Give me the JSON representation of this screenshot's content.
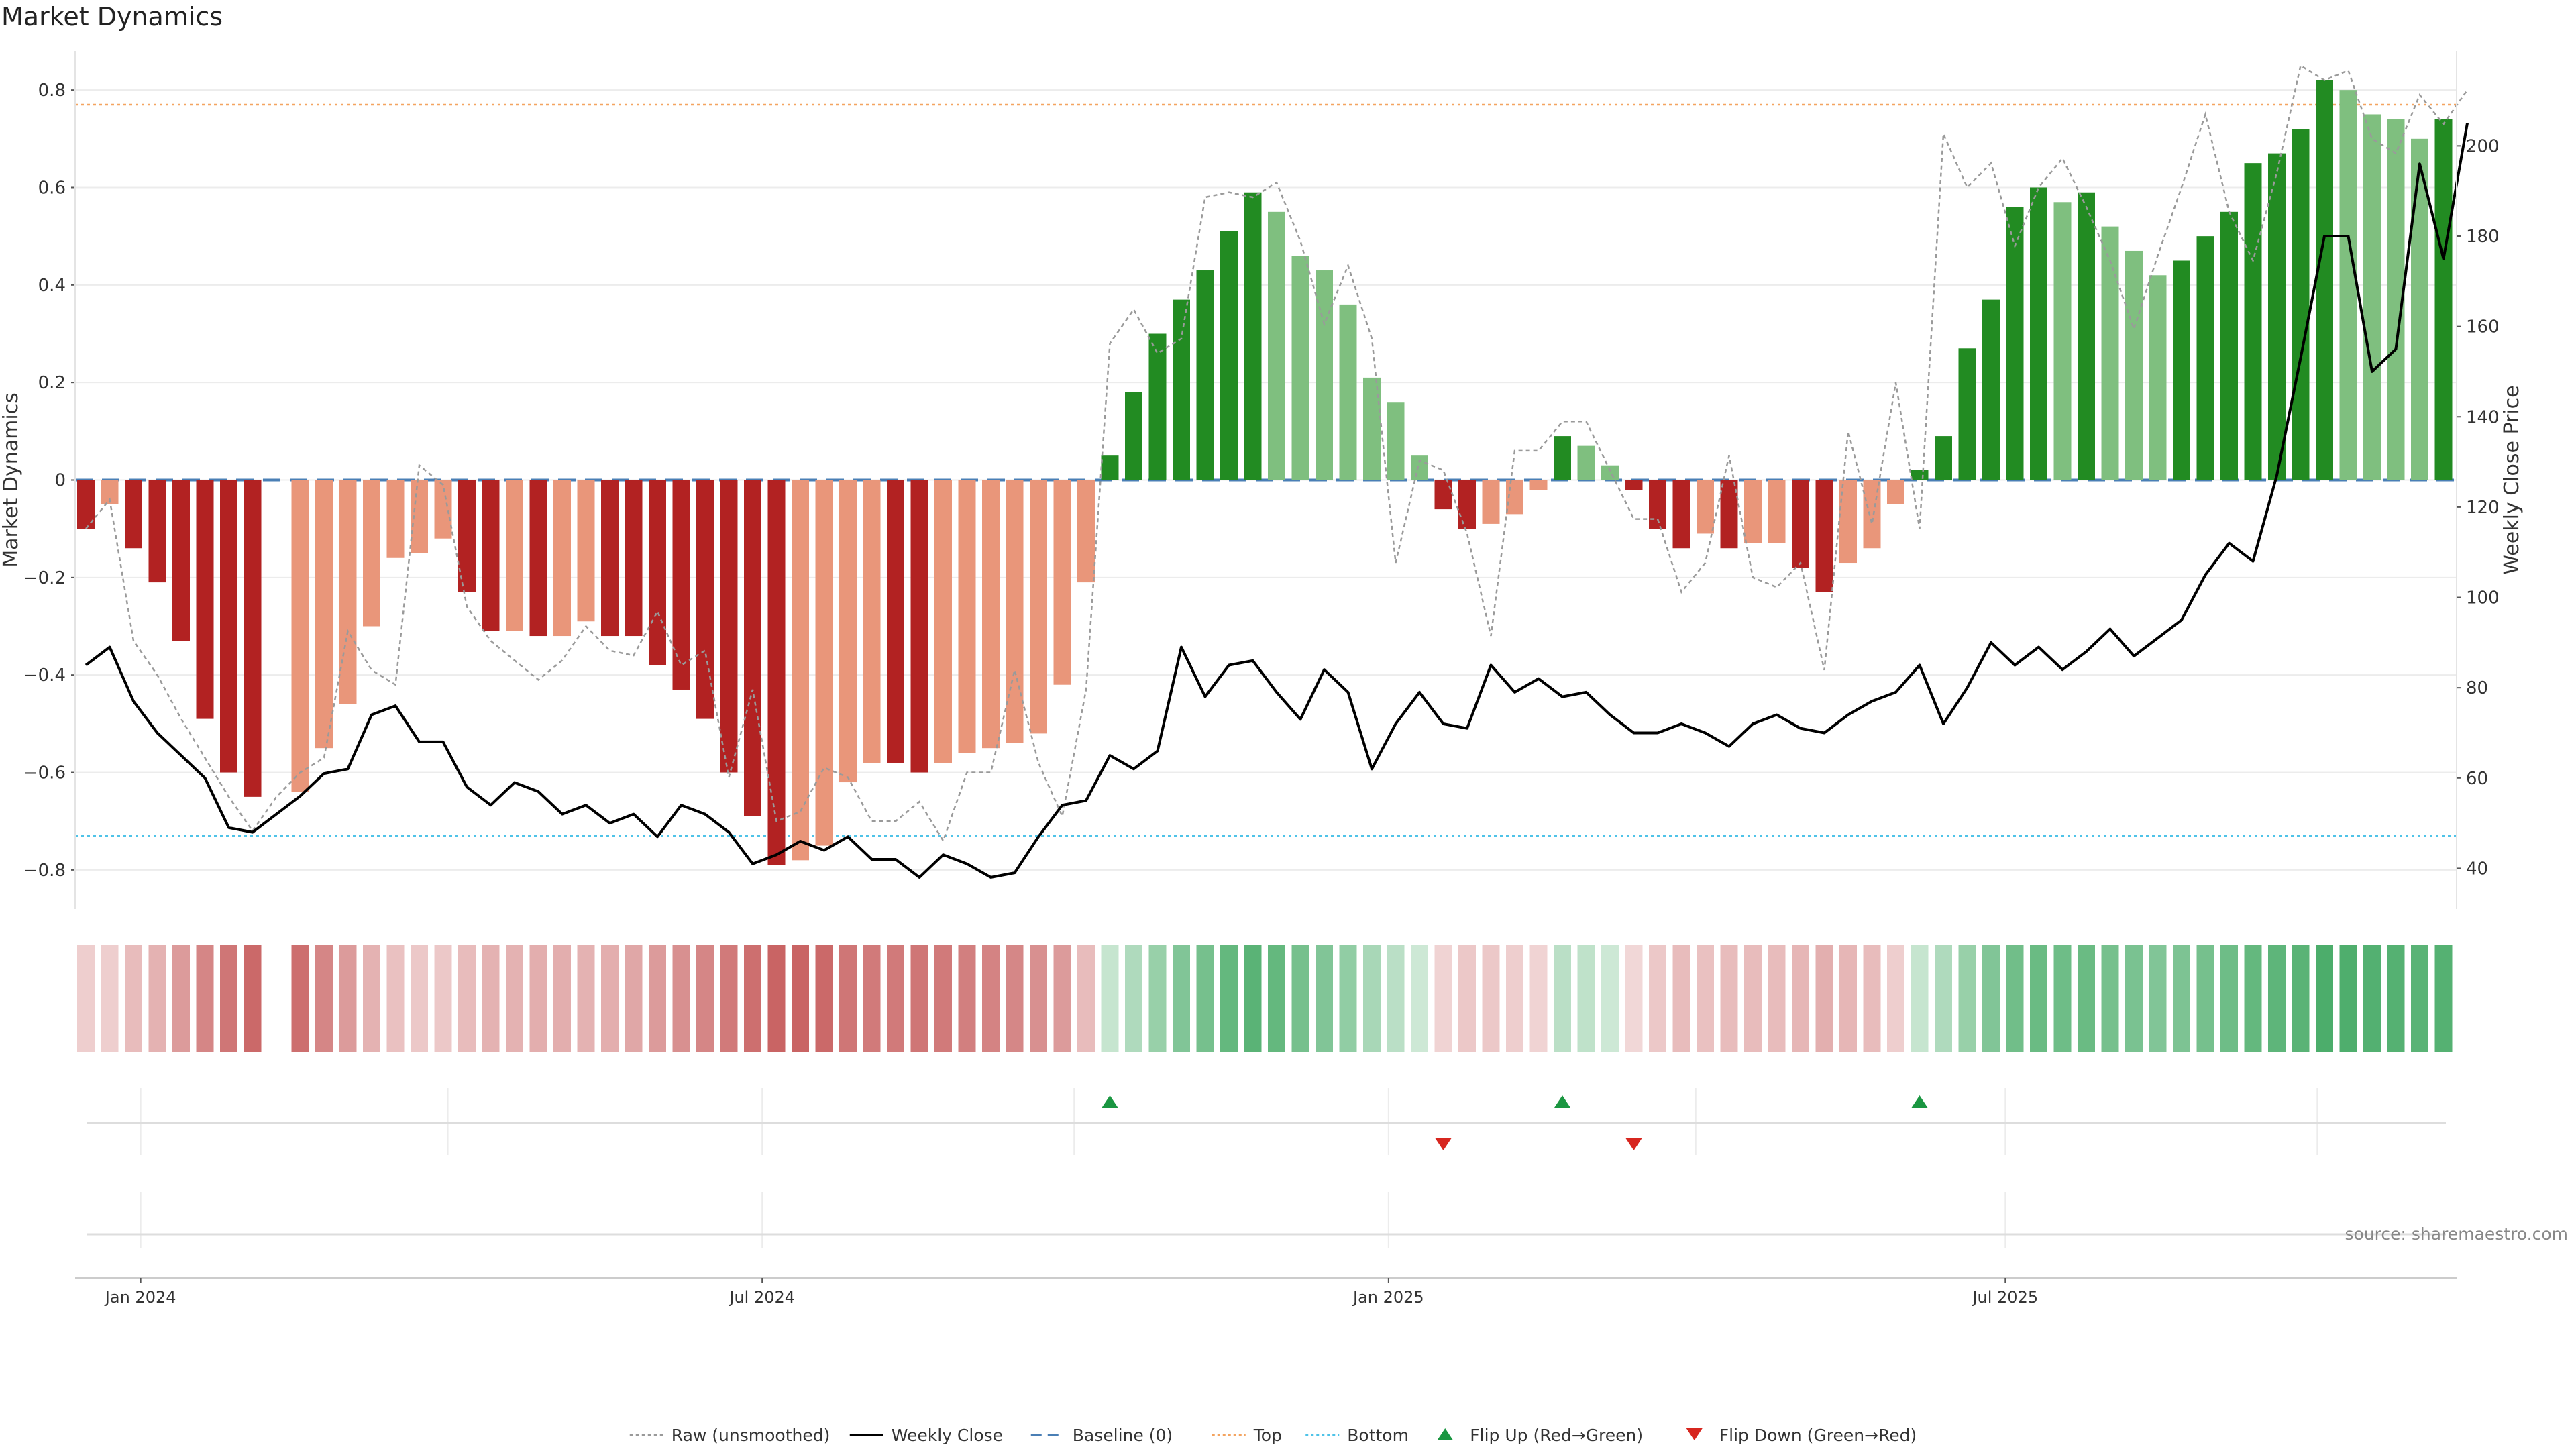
{
  "chart_data": {
    "type": "bar",
    "title": "Market Dynamics",
    "ylabel_left": "Market Dynamics",
    "ylabel_right": "Weekly Close Price",
    "ylim_left": [
      -0.88,
      0.88
    ],
    "ylim_right": [
      31,
      221
    ],
    "yticks_left": [
      0.8,
      0.6,
      0.4,
      0.2,
      0,
      -0.2,
      -0.4,
      -0.6,
      -0.8
    ],
    "ytick_labels_left": [
      "0.8",
      "0.6",
      "0.4",
      "0.2",
      "0",
      "−0.2",
      "−0.4",
      "−0.6",
      "−0.8"
    ],
    "yticks_right": [
      200,
      180,
      160,
      140,
      120,
      100,
      80,
      60,
      40
    ],
    "xtick_labels": [
      "Jan 2024",
      "Jul 2024",
      "Jan 2025",
      "Jul 2025"
    ],
    "xtick_index": [
      2.3,
      28.4,
      54.7,
      80.6
    ],
    "source": "source: sharemaestro.com",
    "top_line": 0.77,
    "bottom_line": -0.73,
    "grid": "horizontal",
    "legend_position": "bottom-center",
    "colors": {
      "red_dark": "#b22222",
      "red_light": "#e9967a",
      "green_dark": "#228b22",
      "green_light": "#7fbf7f",
      "raw": "#9a9a9a",
      "close": "#000000",
      "baseline": "#4a7fb5",
      "top": "#f4a460",
      "bottom": "#4fc3e8",
      "flip_up": "#1a9641",
      "flip_down": "#d7261f"
    },
    "bars": [
      {
        "v": -0.1,
        "c": "red_dark"
      },
      {
        "v": -0.05,
        "c": "red_light"
      },
      {
        "v": -0.14,
        "c": "red_dark"
      },
      {
        "v": -0.21,
        "c": "red_dark"
      },
      {
        "v": -0.33,
        "c": "red_dark"
      },
      {
        "v": -0.49,
        "c": "red_dark"
      },
      {
        "v": -0.6,
        "c": "red_dark"
      },
      {
        "v": -0.65,
        "c": "red_dark"
      },
      null,
      {
        "v": -0.64,
        "c": "red_light"
      },
      {
        "v": -0.55,
        "c": "red_light"
      },
      {
        "v": -0.46,
        "c": "red_light"
      },
      {
        "v": -0.3,
        "c": "red_light"
      },
      {
        "v": -0.16,
        "c": "red_light"
      },
      {
        "v": -0.15,
        "c": "red_light"
      },
      {
        "v": -0.12,
        "c": "red_light"
      },
      {
        "v": -0.23,
        "c": "red_dark"
      },
      {
        "v": -0.31,
        "c": "red_dark"
      },
      {
        "v": -0.31,
        "c": "red_light"
      },
      {
        "v": -0.32,
        "c": "red_dark"
      },
      {
        "v": -0.32,
        "c": "red_light"
      },
      {
        "v": -0.29,
        "c": "red_light"
      },
      {
        "v": -0.32,
        "c": "red_dark"
      },
      {
        "v": -0.32,
        "c": "red_dark"
      },
      {
        "v": -0.38,
        "c": "red_dark"
      },
      {
        "v": -0.43,
        "c": "red_dark"
      },
      {
        "v": -0.49,
        "c": "red_dark"
      },
      {
        "v": -0.6,
        "c": "red_dark"
      },
      {
        "v": -0.69,
        "c": "red_dark"
      },
      {
        "v": -0.79,
        "c": "red_dark"
      },
      {
        "v": -0.78,
        "c": "red_light"
      },
      {
        "v": -0.75,
        "c": "red_light"
      },
      {
        "v": -0.62,
        "c": "red_light"
      },
      {
        "v": -0.58,
        "c": "red_light"
      },
      {
        "v": -0.58,
        "c": "red_dark"
      },
      {
        "v": -0.6,
        "c": "red_dark"
      },
      {
        "v": -0.58,
        "c": "red_light"
      },
      {
        "v": -0.56,
        "c": "red_light"
      },
      {
        "v": -0.55,
        "c": "red_light"
      },
      {
        "v": -0.54,
        "c": "red_light"
      },
      {
        "v": -0.52,
        "c": "red_light"
      },
      {
        "v": -0.42,
        "c": "red_light"
      },
      {
        "v": -0.21,
        "c": "red_light"
      },
      {
        "v": 0.05,
        "c": "green_dark"
      },
      {
        "v": 0.18,
        "c": "green_dark"
      },
      {
        "v": 0.3,
        "c": "green_dark"
      },
      {
        "v": 0.37,
        "c": "green_dark"
      },
      {
        "v": 0.43,
        "c": "green_dark"
      },
      {
        "v": 0.51,
        "c": "green_dark"
      },
      {
        "v": 0.59,
        "c": "green_dark"
      },
      {
        "v": 0.55,
        "c": "green_light"
      },
      {
        "v": 0.46,
        "c": "green_light"
      },
      {
        "v": 0.43,
        "c": "green_light"
      },
      {
        "v": 0.36,
        "c": "green_light"
      },
      {
        "v": 0.21,
        "c": "green_light"
      },
      {
        "v": 0.16,
        "c": "green_light"
      },
      {
        "v": 0.05,
        "c": "green_light"
      },
      {
        "v": -0.06,
        "c": "red_dark"
      },
      {
        "v": -0.1,
        "c": "red_dark"
      },
      {
        "v": -0.09,
        "c": "red_light"
      },
      {
        "v": -0.07,
        "c": "red_light"
      },
      {
        "v": -0.02,
        "c": "red_light"
      },
      {
        "v": 0.09,
        "c": "green_dark"
      },
      {
        "v": 0.07,
        "c": "green_light"
      },
      {
        "v": 0.03,
        "c": "green_light"
      },
      {
        "v": -0.02,
        "c": "red_dark"
      },
      {
        "v": -0.1,
        "c": "red_dark"
      },
      {
        "v": -0.14,
        "c": "red_dark"
      },
      {
        "v": -0.11,
        "c": "red_light"
      },
      {
        "v": -0.14,
        "c": "red_dark"
      },
      {
        "v": -0.13,
        "c": "red_light"
      },
      {
        "v": -0.13,
        "c": "red_light"
      },
      {
        "v": -0.18,
        "c": "red_dark"
      },
      {
        "v": -0.23,
        "c": "red_dark"
      },
      {
        "v": -0.17,
        "c": "red_light"
      },
      {
        "v": -0.14,
        "c": "red_light"
      },
      {
        "v": -0.05,
        "c": "red_light"
      },
      {
        "v": 0.02,
        "c": "green_dark"
      },
      {
        "v": 0.09,
        "c": "green_dark"
      },
      {
        "v": 0.27,
        "c": "green_dark"
      },
      {
        "v": 0.37,
        "c": "green_dark"
      },
      {
        "v": 0.56,
        "c": "green_dark"
      },
      {
        "v": 0.6,
        "c": "green_dark"
      },
      {
        "v": 0.57,
        "c": "green_light"
      },
      {
        "v": 0.59,
        "c": "green_dark"
      },
      {
        "v": 0.52,
        "c": "green_light"
      },
      {
        "v": 0.47,
        "c": "green_light"
      },
      {
        "v": 0.42,
        "c": "green_light"
      },
      {
        "v": 0.45,
        "c": "green_dark"
      },
      {
        "v": 0.5,
        "c": "green_dark"
      },
      {
        "v": 0.55,
        "c": "green_dark"
      },
      {
        "v": 0.65,
        "c": "green_dark"
      },
      {
        "v": 0.67,
        "c": "green_dark"
      },
      {
        "v": 0.72,
        "c": "green_dark"
      },
      {
        "v": 0.82,
        "c": "green_dark"
      },
      {
        "v": 0.8,
        "c": "green_light"
      },
      {
        "v": 0.75,
        "c": "green_light"
      },
      {
        "v": 0.74,
        "c": "green_light"
      },
      {
        "v": 0.7,
        "c": "green_light"
      },
      {
        "v": 0.74,
        "c": "green_dark"
      }
    ],
    "raw": [
      -0.1,
      -0.04,
      -0.33,
      -0.4,
      -0.49,
      -0.57,
      -0.65,
      -0.72,
      -0.65,
      -0.6,
      -0.57,
      -0.31,
      -0.39,
      -0.42,
      0.03,
      -0.01,
      -0.26,
      -0.33,
      -0.37,
      -0.41,
      -0.37,
      -0.3,
      -0.35,
      -0.36,
      -0.27,
      -0.38,
      -0.35,
      -0.61,
      -0.43,
      -0.7,
      -0.68,
      -0.59,
      -0.61,
      -0.7,
      -0.7,
      -0.66,
      -0.74,
      -0.6,
      -0.6,
      -0.39,
      -0.58,
      -0.69,
      -0.43,
      0.28,
      0.35,
      0.26,
      0.29,
      0.58,
      0.59,
      0.58,
      0.61,
      0.49,
      0.32,
      0.44,
      0.29,
      -0.17,
      0.04,
      0.02,
      -0.11,
      -0.32,
      0.06,
      0.06,
      0.12,
      0.12,
      0.02,
      -0.08,
      -0.08,
      -0.23,
      -0.17,
      0.05,
      -0.2,
      -0.22,
      -0.17,
      -0.39,
      0.1,
      -0.09,
      0.2,
      -0.1,
      0.71,
      0.6,
      0.65,
      0.48,
      0.6,
      0.66,
      0.56,
      0.45,
      0.31,
      0.46,
      0.6,
      0.75,
      0.55,
      0.45,
      0.63,
      0.85,
      0.82,
      0.84,
      0.7,
      0.67,
      0.79,
      0.73,
      0.8
    ],
    "close": [
      85,
      89,
      77,
      70,
      65,
      60,
      49,
      48,
      52,
      56,
      61,
      62,
      74,
      76,
      68,
      68,
      58,
      54,
      59,
      57,
      52,
      54,
      50,
      52,
      47,
      54,
      52,
      48,
      41,
      43,
      46,
      44,
      47,
      42,
      42,
      38,
      43,
      41,
      38,
      39,
      47,
      54,
      55,
      65,
      62,
      66,
      89,
      78,
      85,
      86,
      79,
      73,
      84,
      79,
      62,
      72,
      79,
      72,
      71,
      85,
      79,
      82,
      78,
      79,
      74,
      70,
      70,
      72,
      70,
      67,
      72,
      74,
      71,
      70,
      74,
      77,
      79,
      85,
      72,
      80,
      90,
      85,
      89,
      84,
      88,
      93,
      87,
      91,
      95,
      105,
      112,
      108,
      127,
      153,
      180,
      180,
      150,
      155,
      196,
      175,
      205
    ],
    "strip": [
      {
        "c": "r",
        "a": 0.22
      },
      {
        "c": "r",
        "a": 0.22
      },
      {
        "c": "r",
        "a": 0.3
      },
      {
        "c": "r",
        "a": 0.35
      },
      {
        "c": "r",
        "a": 0.45
      },
      {
        "c": "r",
        "a": 0.55
      },
      {
        "c": "r",
        "a": 0.62
      },
      {
        "c": "r",
        "a": 0.68
      },
      null,
      {
        "c": "r",
        "a": 0.65
      },
      {
        "c": "r",
        "a": 0.55
      },
      {
        "c": "r",
        "a": 0.45
      },
      {
        "c": "r",
        "a": 0.35
      },
      {
        "c": "r",
        "a": 0.28
      },
      {
        "c": "r",
        "a": 0.25
      },
      {
        "c": "r",
        "a": 0.25
      },
      {
        "c": "r",
        "a": 0.3
      },
      {
        "c": "r",
        "a": 0.35
      },
      {
        "c": "r",
        "a": 0.35
      },
      {
        "c": "r",
        "a": 0.37
      },
      {
        "c": "r",
        "a": 0.37
      },
      {
        "c": "r",
        "a": 0.35
      },
      {
        "c": "r",
        "a": 0.37
      },
      {
        "c": "r",
        "a": 0.4
      },
      {
        "c": "r",
        "a": 0.45
      },
      {
        "c": "r",
        "a": 0.5
      },
      {
        "c": "r",
        "a": 0.55
      },
      {
        "c": "r",
        "a": 0.6
      },
      {
        "c": "r",
        "a": 0.65
      },
      {
        "c": "r",
        "a": 0.7
      },
      {
        "c": "r",
        "a": 0.7
      },
      {
        "c": "r",
        "a": 0.68
      },
      {
        "c": "r",
        "a": 0.62
      },
      {
        "c": "r",
        "a": 0.6
      },
      {
        "c": "r",
        "a": 0.6
      },
      {
        "c": "r",
        "a": 0.62
      },
      {
        "c": "r",
        "a": 0.6
      },
      {
        "c": "r",
        "a": 0.58
      },
      {
        "c": "r",
        "a": 0.56
      },
      {
        "c": "r",
        "a": 0.54
      },
      {
        "c": "r",
        "a": 0.5
      },
      {
        "c": "r",
        "a": 0.45
      },
      {
        "c": "r",
        "a": 0.3
      },
      {
        "c": "g",
        "a": 0.25
      },
      {
        "c": "g",
        "a": 0.35
      },
      {
        "c": "g",
        "a": 0.45
      },
      {
        "c": "g",
        "a": 0.55
      },
      {
        "c": "g",
        "a": 0.6
      },
      {
        "c": "g",
        "a": 0.68
      },
      {
        "c": "g",
        "a": 0.72
      },
      {
        "c": "g",
        "a": 0.68
      },
      {
        "c": "g",
        "a": 0.6
      },
      {
        "c": "g",
        "a": 0.55
      },
      {
        "c": "g",
        "a": 0.48
      },
      {
        "c": "g",
        "a": 0.38
      },
      {
        "c": "g",
        "a": 0.3
      },
      {
        "c": "g",
        "a": 0.22
      },
      {
        "c": "r",
        "a": 0.2
      },
      {
        "c": "r",
        "a": 0.25
      },
      {
        "c": "r",
        "a": 0.25
      },
      {
        "c": "r",
        "a": 0.22
      },
      {
        "c": "r",
        "a": 0.2
      },
      {
        "c": "g",
        "a": 0.3
      },
      {
        "c": "g",
        "a": 0.28
      },
      {
        "c": "g",
        "a": 0.22
      },
      {
        "c": "r",
        "a": 0.18
      },
      {
        "c": "r",
        "a": 0.25
      },
      {
        "c": "r",
        "a": 0.3
      },
      {
        "c": "r",
        "a": 0.28
      },
      {
        "c": "r",
        "a": 0.3
      },
      {
        "c": "r",
        "a": 0.3
      },
      {
        "c": "r",
        "a": 0.3
      },
      {
        "c": "r",
        "a": 0.33
      },
      {
        "c": "r",
        "a": 0.36
      },
      {
        "c": "r",
        "a": 0.33
      },
      {
        "c": "r",
        "a": 0.3
      },
      {
        "c": "r",
        "a": 0.22
      },
      {
        "c": "g",
        "a": 0.25
      },
      {
        "c": "g",
        "a": 0.35
      },
      {
        "c": "g",
        "a": 0.45
      },
      {
        "c": "g",
        "a": 0.55
      },
      {
        "c": "g",
        "a": 0.62
      },
      {
        "c": "g",
        "a": 0.65
      },
      {
        "c": "g",
        "a": 0.63
      },
      {
        "c": "g",
        "a": 0.65
      },
      {
        "c": "g",
        "a": 0.6
      },
      {
        "c": "g",
        "a": 0.58
      },
      {
        "c": "g",
        "a": 0.55
      },
      {
        "c": "g",
        "a": 0.57
      },
      {
        "c": "g",
        "a": 0.6
      },
      {
        "c": "g",
        "a": 0.63
      },
      {
        "c": "g",
        "a": 0.68
      },
      {
        "c": "g",
        "a": 0.7
      },
      {
        "c": "g",
        "a": 0.72
      },
      {
        "c": "g",
        "a": 0.78
      },
      {
        "c": "g",
        "a": 0.77
      },
      {
        "c": "g",
        "a": 0.75
      },
      {
        "c": "g",
        "a": 0.74
      },
      {
        "c": "g",
        "a": 0.72
      },
      {
        "c": "g",
        "a": 0.74
      }
    ],
    "flips_up": [
      43,
      62,
      77
    ],
    "flips_down": [
      57,
      65
    ],
    "legend": [
      {
        "label": "Raw (unsmoothed)",
        "kind": "dotted"
      },
      {
        "label": "Weekly Close",
        "kind": "solid"
      },
      {
        "label": "Baseline (0)",
        "kind": "dashed"
      },
      {
        "label": "Top",
        "kind": "top"
      },
      {
        "label": "Bottom",
        "kind": "bottom"
      },
      {
        "label": "Flip Up (Red→Green)",
        "kind": "up"
      },
      {
        "label": "Flip Down (Green→Red)",
        "kind": "down"
      }
    ]
  }
}
